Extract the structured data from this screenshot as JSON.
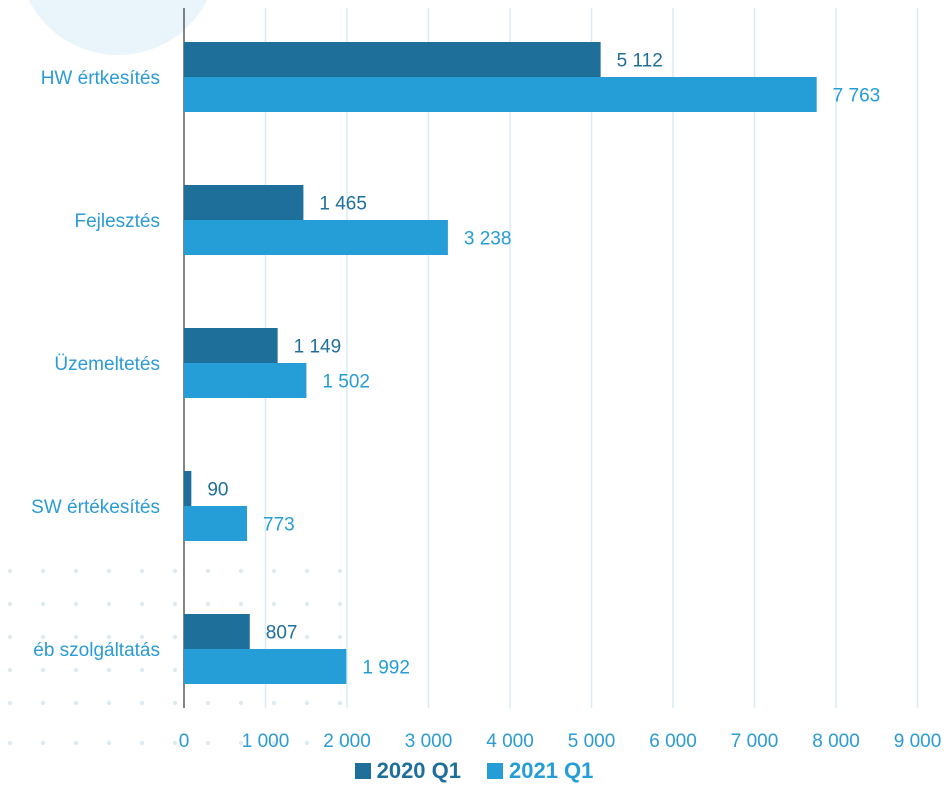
{
  "chart_data": {
    "type": "bar",
    "orientation": "horizontal",
    "categories": [
      "HW értkesítés",
      "Fejlesztés",
      "Üzemeltetés",
      "SW értékesítés",
      "éb szolgáltatás"
    ],
    "series": [
      {
        "name": "2020 Q1",
        "color": "#1f6f9b",
        "values": [
          5112,
          1465,
          1149,
          90,
          807
        ],
        "labels": [
          "5 112",
          "1 465",
          "1 149",
          "90",
          "807"
        ]
      },
      {
        "name": "2021 Q1",
        "color": "#259dd6",
        "values": [
          7763,
          3238,
          1502,
          773,
          1992
        ],
        "labels": [
          "7 763",
          "3 238",
          "1 502",
          "773",
          "1 992"
        ]
      }
    ],
    "xlim": [
      0,
      9000
    ],
    "x_ticks": [
      0,
      1000,
      2000,
      3000,
      4000,
      5000,
      6000,
      7000,
      8000,
      9000
    ],
    "x_tick_labels": [
      "0",
      "1 000",
      "2 000",
      "3 000",
      "4 000",
      "5 000",
      "6 000",
      "7 000",
      "8 000",
      "9 000"
    ],
    "grid": "vertical",
    "legend_position": "bottom"
  }
}
